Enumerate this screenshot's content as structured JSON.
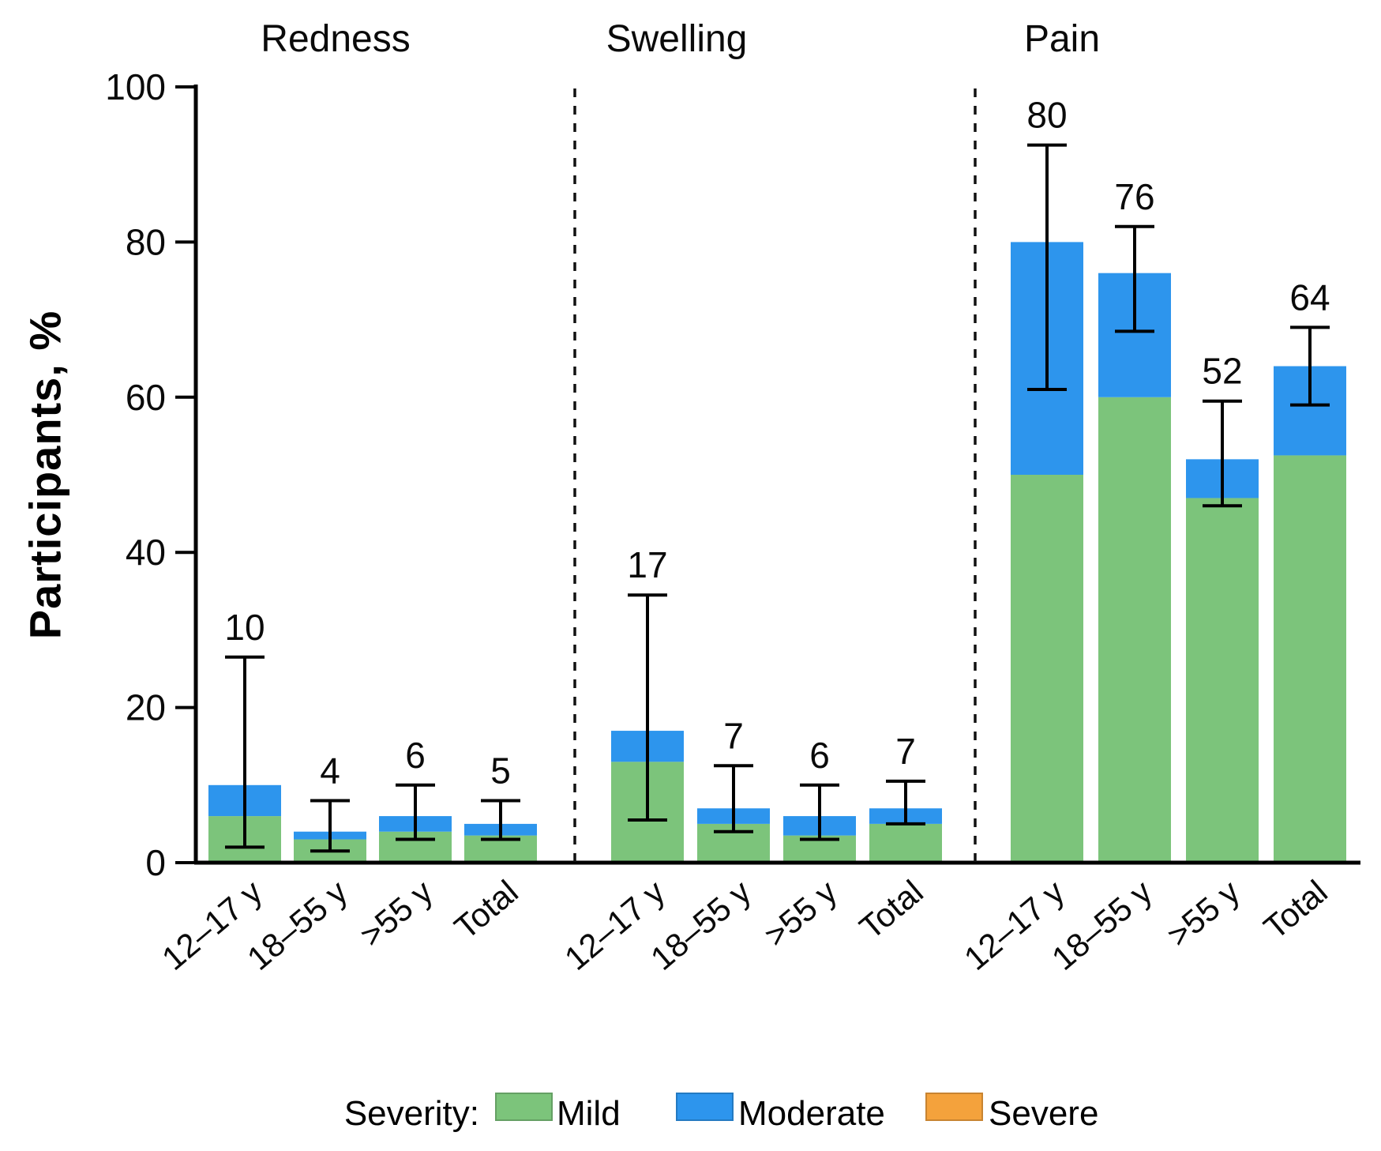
{
  "chart_data": {
    "type": "bar",
    "stacked": true,
    "title": "",
    "ylabel": "Participants, %",
    "ylim": [
      0,
      100
    ],
    "yticks": [
      0,
      20,
      40,
      60,
      80,
      100
    ],
    "grid": false,
    "legend_position": "bottom",
    "categories": [
      "12–17 y",
      "18–55 y",
      ">55 y",
      "Total"
    ],
    "colors": {
      "mild": "#7CC47B",
      "moderate": "#2D95ED",
      "severe": "#F4A23C"
    },
    "axis_color": "#000000",
    "legend": {
      "title": "Severity:",
      "items": [
        {
          "label": "Mild",
          "color": "#7CC47B"
        },
        {
          "label": "Moderate",
          "color": "#2D95ED"
        },
        {
          "label": "Severe",
          "color": "#F4A23C"
        }
      ]
    },
    "panels": [
      {
        "title": "Redness",
        "bars": [
          {
            "category": "12–17 y",
            "mild": 6,
            "moderate": 4,
            "severe": 0,
            "total": 10,
            "ci": [
              2,
              26.5
            ]
          },
          {
            "category": "18–55 y",
            "mild": 3,
            "moderate": 1,
            "severe": 0,
            "total": 4,
            "ci": [
              1.5,
              8
            ]
          },
          {
            "category": ">55 y",
            "mild": 4,
            "moderate": 2,
            "severe": 0,
            "total": 6,
            "ci": [
              3,
              10
            ]
          },
          {
            "category": "Total",
            "mild": 3.5,
            "moderate": 1.5,
            "severe": 0,
            "total": 5,
            "ci": [
              3,
              8
            ]
          }
        ]
      },
      {
        "title": "Swelling",
        "bars": [
          {
            "category": "12–17 y",
            "mild": 13,
            "moderate": 4,
            "severe": 0,
            "total": 17,
            "ci": [
              5.5,
              34.5
            ]
          },
          {
            "category": "18–55 y",
            "mild": 5,
            "moderate": 2,
            "severe": 0,
            "total": 7,
            "ci": [
              4,
              12.5
            ]
          },
          {
            "category": ">55 y",
            "mild": 3.5,
            "moderate": 2.5,
            "severe": 0,
            "total": 6,
            "ci": [
              3,
              10
            ]
          },
          {
            "category": "Total",
            "mild": 5,
            "moderate": 2,
            "severe": 0,
            "total": 7,
            "ci": [
              5,
              10.5
            ]
          }
        ]
      },
      {
        "title": "Pain",
        "bars": [
          {
            "category": "12–17 y",
            "mild": 50,
            "moderate": 30,
            "severe": 0,
            "total": 80,
            "ci": [
              61,
              92.5
            ]
          },
          {
            "category": "18–55 y",
            "mild": 60,
            "moderate": 16,
            "severe": 0,
            "total": 76,
            "ci": [
              68.5,
              82
            ]
          },
          {
            "category": ">55 y",
            "mild": 47,
            "moderate": 5,
            "severe": 0,
            "total": 52,
            "ci": [
              46,
              59.5
            ]
          },
          {
            "category": "Total",
            "mild": 52.5,
            "moderate": 11.5,
            "severe": 0,
            "total": 64,
            "ci": [
              59,
              69
            ]
          }
        ]
      }
    ]
  }
}
